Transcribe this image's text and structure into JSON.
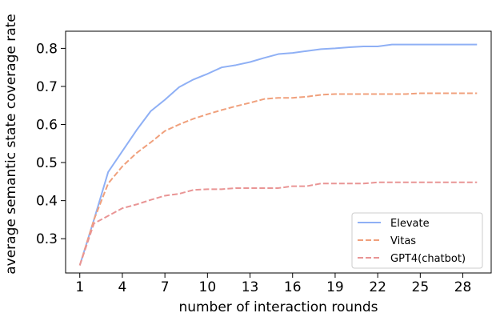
{
  "chart_data": {
    "type": "line",
    "title": "",
    "xlabel": "number of interaction rounds",
    "ylabel": "average semantic state coverage rate",
    "xlim": [
      0,
      30
    ],
    "ylim": [
      0.21,
      0.845
    ],
    "xticks": [
      1,
      4,
      7,
      10,
      13,
      16,
      19,
      22,
      25,
      28
    ],
    "yticks": [
      0.3,
      0.4,
      0.5,
      0.6,
      0.7,
      0.8
    ],
    "ytick_labels": [
      "0.3",
      "0.4",
      "0.5",
      "0.6",
      "0.7",
      "0.8"
    ],
    "grid": false,
    "legend_position": "lower-right",
    "x": [
      1,
      2,
      3,
      4,
      5,
      6,
      7,
      8,
      9,
      10,
      11,
      12,
      13,
      14,
      15,
      16,
      17,
      18,
      19,
      20,
      21,
      22,
      23,
      24,
      25,
      26,
      27,
      28,
      29
    ],
    "series": [
      {
        "name": "Elevate",
        "color": "#8fb0f5",
        "dash": "solid",
        "values": [
          0.23,
          0.35,
          0.475,
          0.53,
          0.585,
          0.635,
          0.665,
          0.698,
          0.718,
          0.733,
          0.75,
          0.756,
          0.764,
          0.775,
          0.785,
          0.788,
          0.793,
          0.798,
          0.8,
          0.803,
          0.805,
          0.805,
          0.81,
          0.81,
          0.81,
          0.81,
          0.81,
          0.81,
          0.81
        ]
      },
      {
        "name": "Vitas",
        "color": "#f0a07c",
        "dash": "dashed",
        "values": [
          0.23,
          0.35,
          0.445,
          0.49,
          0.525,
          0.553,
          0.583,
          0.6,
          0.615,
          0.627,
          0.638,
          0.648,
          0.657,
          0.667,
          0.67,
          0.67,
          0.673,
          0.678,
          0.68,
          0.68,
          0.68,
          0.68,
          0.68,
          0.68,
          0.682,
          0.682,
          0.682,
          0.682,
          0.682
        ]
      },
      {
        "name": "GPT4(chatbot)",
        "color": "#e99595",
        "dash": "dashed",
        "values": [
          0.23,
          0.34,
          0.36,
          0.38,
          0.39,
          0.402,
          0.413,
          0.418,
          0.428,
          0.43,
          0.43,
          0.433,
          0.433,
          0.433,
          0.433,
          0.438,
          0.438,
          0.445,
          0.445,
          0.445,
          0.445,
          0.448,
          0.448,
          0.448,
          0.448,
          0.448,
          0.448,
          0.448,
          0.448
        ]
      }
    ]
  }
}
